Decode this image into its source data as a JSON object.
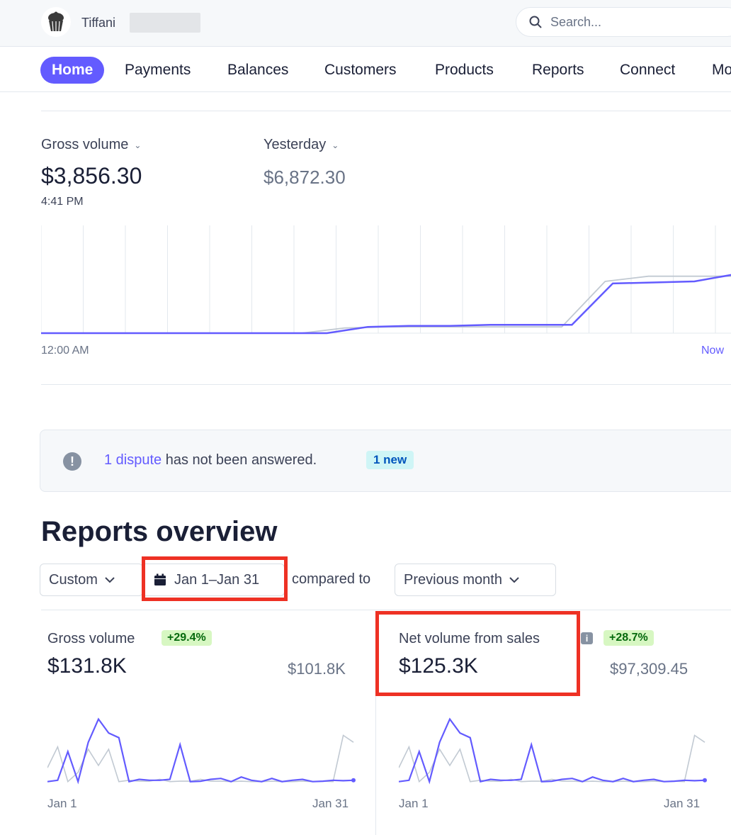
{
  "header": {
    "account_name": "Tiffani",
    "search_placeholder": "Search..."
  },
  "nav": {
    "items": [
      {
        "label": "Home",
        "active": true
      },
      {
        "label": "Payments"
      },
      {
        "label": "Balances"
      },
      {
        "label": "Customers"
      },
      {
        "label": "Products"
      },
      {
        "label": "Reports"
      },
      {
        "label": "Connect"
      },
      {
        "label": "Mo"
      }
    ]
  },
  "today": {
    "metric_selector": "Gross volume",
    "value": "$3,856.30",
    "time": "4:41 PM",
    "compare_selector": "Yesterday",
    "compare_value": "$6,872.30",
    "x_start_label": "12:00 AM",
    "x_end_label": "Now"
  },
  "dispute_banner": {
    "link_text": "1 dispute",
    "message": " has not been answered.",
    "badge": "1 new"
  },
  "reports": {
    "title": "Reports overview",
    "range_selector": "Custom",
    "date_range": "Jan 1–Jan 31",
    "compared_to_label": "compared to",
    "compare_selector": "Previous month"
  },
  "cards": [
    {
      "title": "Gross volume",
      "change": "+29.4%",
      "value": "$131.8K",
      "previous": "$101.8K",
      "x_start": "Jan 1",
      "x_end": "Jan 31"
    },
    {
      "title": "Net volume from sales",
      "change": "+28.7%",
      "value": "$125.3K",
      "previous": "$97,309.45",
      "x_start": "Jan 1",
      "x_end": "Jan 31"
    }
  ],
  "chart_data": [
    {
      "type": "line",
      "x_start": "12:00 AM",
      "x_end": "Now",
      "grid": true,
      "series": [
        {
          "values": [
            0,
            0,
            0,
            0,
            0,
            0,
            0,
            0.05,
            0.06,
            0.06,
            0.06,
            0.06,
            0.06,
            0.5,
            0.55,
            0.55,
            0.55
          ],
          "color": "#c1c9d2"
        },
        {
          "values": [
            0,
            0,
            0,
            0,
            0,
            0,
            0,
            0,
            0.06,
            0.07,
            0.07,
            0.08,
            0.08,
            0.08,
            0.48,
            0.49,
            0.5,
            0.57
          ],
          "color": "#635bff"
        }
      ]
    },
    {
      "type": "line",
      "title": "Gross volume",
      "x_start": "Jan 1",
      "x_end": "Jan 31",
      "series": [
        {
          "values": [
            0.35,
            0.8,
            0.05,
            0.25,
            0.75,
            0.4,
            0.75,
            0.05,
            0.08,
            0.06,
            0.06,
            0.1,
            0.05,
            0.06,
            0.06,
            0.1,
            0.06,
            0.06,
            0.05,
            0.06,
            0.05,
            0.05,
            0.06,
            0.05,
            0.05,
            0.06,
            0.05,
            0.06,
            0.05,
            1.05,
            0.9
          ],
          "color": "#c1c9d2"
        },
        {
          "values": [
            0.05,
            0.08,
            0.7,
            0.05,
            0.9,
            1.4,
            1.1,
            1.0,
            0.05,
            0.1,
            0.08,
            0.08,
            0.1,
            0.85,
            0.05,
            0.06,
            0.1,
            0.12,
            0.05,
            0.15,
            0.08,
            0.05,
            0.12,
            0.05,
            0.08,
            0.1,
            0.05,
            0.06,
            0.08,
            0.07,
            0.08
          ],
          "color": "#635bff"
        }
      ]
    },
    {
      "type": "line",
      "title": "Net volume from sales",
      "x_start": "Jan 1",
      "x_end": "Jan 31",
      "series": [
        {
          "values": [
            0.35,
            0.8,
            0.05,
            0.25,
            0.75,
            0.4,
            0.75,
            0.05,
            0.08,
            0.06,
            0.06,
            0.1,
            0.05,
            0.06,
            0.06,
            0.1,
            0.06,
            0.06,
            0.05,
            0.06,
            0.05,
            0.05,
            0.06,
            0.05,
            0.05,
            0.06,
            0.05,
            0.06,
            0.05,
            1.05,
            0.9
          ],
          "color": "#c1c9d2"
        },
        {
          "values": [
            0.05,
            0.08,
            0.7,
            0.05,
            0.9,
            1.4,
            1.1,
            1.0,
            0.05,
            0.1,
            0.08,
            0.08,
            0.1,
            0.85,
            0.05,
            0.06,
            0.1,
            0.12,
            0.05,
            0.15,
            0.08,
            0.05,
            0.12,
            0.05,
            0.08,
            0.1,
            0.05,
            0.06,
            0.08,
            0.07,
            0.08
          ],
          "color": "#635bff"
        }
      ]
    }
  ]
}
